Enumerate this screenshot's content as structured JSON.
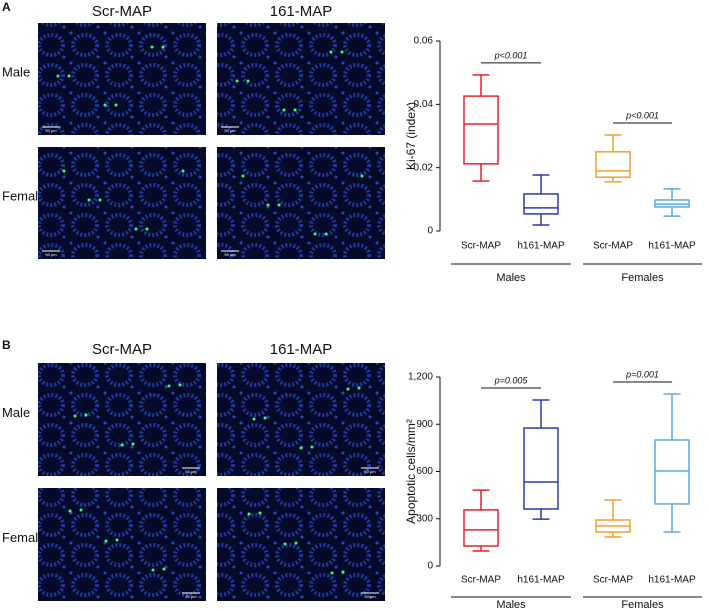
{
  "panels": [
    {
      "label": "A",
      "columns": [
        "Scr-MAP",
        "161-MAP"
      ],
      "rows": [
        "Male",
        "Female"
      ],
      "scale_bar": "50 µm"
    },
    {
      "label": "B",
      "columns": [
        "Scr-MAP",
        "161-MAP"
      ],
      "rows": [
        "Male",
        "Female"
      ],
      "scale_bar": "50 µm"
    }
  ],
  "chart_data": [
    {
      "type": "box",
      "ylabel": "Ki-67 (index)",
      "categories": [
        "Scr-MAP",
        "h161-MAP",
        "Scr-MAP",
        "h161-MAP"
      ],
      "groups": [
        "Males",
        "Females"
      ],
      "boxes": [
        {
          "color": "#e0262b",
          "min": 0.0158,
          "q1": 0.0212,
          "median": 0.0338,
          "q3": 0.0426,
          "max": 0.0493
        },
        {
          "color": "#2b3bab",
          "min": 0.0019,
          "q1": 0.0054,
          "median": 0.0073,
          "q3": 0.0117,
          "max": 0.0177
        },
        {
          "color": "#f0a030",
          "min": 0.0155,
          "q1": 0.017,
          "median": 0.019,
          "q3": 0.025,
          "max": 0.0303
        },
        {
          "color": "#5aa8e0",
          "min": 0.0047,
          "q1": 0.0076,
          "median": 0.0085,
          "q3": 0.0098,
          "max": 0.0133
        }
      ],
      "annotations": [
        "p<0.001",
        "p<0.001"
      ],
      "ylim": [
        0,
        0.06
      ],
      "yticks": [
        0,
        0.02,
        0.04,
        0.06
      ]
    },
    {
      "type": "box",
      "ylabel": "Apoptotic cells/mm²",
      "categories": [
        "Scr-MAP",
        "h161-MAP",
        "Scr-MAP",
        "h161-MAP"
      ],
      "groups": [
        "Males",
        "Females"
      ],
      "boxes": [
        {
          "color": "#e0262b",
          "min": 95,
          "q1": 127,
          "median": 229,
          "q3": 356,
          "max": 482
        },
        {
          "color": "#2b3bab",
          "min": 298,
          "q1": 362,
          "median": 533,
          "q3": 876,
          "max": 1054
        },
        {
          "color": "#f0a030",
          "min": 184,
          "q1": 216,
          "median": 254,
          "q3": 292,
          "max": 419
        },
        {
          "color": "#5aa8e0",
          "min": 216,
          "q1": 394,
          "median": 603,
          "q3": 800,
          "max": 1092
        }
      ],
      "annotations": [
        "p=0.005",
        "p=0.001"
      ],
      "ylim": [
        0,
        1200
      ],
      "yticks": [
        0,
        300,
        600,
        900,
        {
          "value": 1200,
          "label": "1,200"
        }
      ]
    }
  ]
}
